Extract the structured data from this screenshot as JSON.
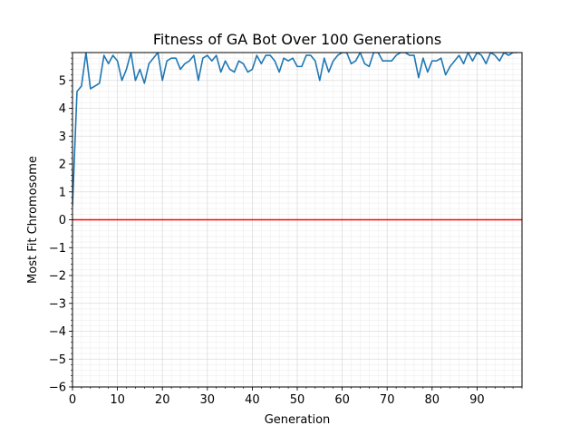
{
  "chart_data": {
    "type": "line",
    "title": "Fitness of GA Bot Over 100 Generations",
    "xlabel": "Generation",
    "ylabel": "Most Fit Chromosome",
    "xlim": [
      0,
      100
    ],
    "ylim": [
      -6,
      6
    ],
    "x_ticks": [
      "0",
      "10",
      "20",
      "30",
      "40",
      "50",
      "60",
      "70",
      "80",
      "90"
    ],
    "y_ticks": [
      "−6",
      "−5",
      "−4",
      "−3",
      "−2",
      "−1",
      "0",
      "1",
      "2",
      "3",
      "4",
      "5"
    ],
    "grid": "major and minor",
    "reference_line": {
      "y": 0,
      "color": "#ff0000"
    },
    "series": [
      {
        "color": "#1f77b4",
        "x": [
          0,
          1,
          2,
          3,
          4,
          5,
          6,
          7,
          8,
          9,
          10,
          11,
          12,
          13,
          14,
          15,
          16,
          17,
          18,
          19,
          20,
          21,
          22,
          23,
          24,
          25,
          26,
          27,
          28,
          29,
          30,
          31,
          32,
          33,
          34,
          35,
          36,
          37,
          38,
          39,
          40,
          41,
          42,
          43,
          44,
          45,
          46,
          47,
          48,
          49,
          50,
          51,
          52,
          53,
          54,
          55,
          56,
          57,
          58,
          59,
          60,
          61,
          62,
          63,
          64,
          65,
          66,
          67,
          68,
          69,
          70,
          71,
          72,
          73,
          74,
          75,
          76,
          77,
          78,
          79,
          80,
          81,
          82,
          83,
          84,
          85,
          86,
          87,
          88,
          89,
          90,
          91,
          92,
          93,
          94,
          95,
          96,
          97,
          98,
          99
        ],
        "values": [
          0.5,
          4.6,
          4.8,
          6.0,
          4.7,
          4.8,
          4.9,
          5.9,
          5.6,
          5.9,
          5.7,
          5.0,
          5.4,
          6.0,
          5.0,
          5.4,
          4.9,
          5.6,
          5.8,
          6.0,
          5.0,
          5.7,
          5.8,
          5.8,
          5.4,
          5.6,
          5.7,
          5.9,
          5.0,
          5.8,
          5.9,
          5.7,
          5.9,
          5.3,
          5.7,
          5.4,
          5.3,
          5.7,
          5.6,
          5.3,
          5.4,
          5.9,
          5.6,
          5.9,
          5.9,
          5.7,
          5.3,
          5.8,
          5.7,
          5.8,
          5.5,
          5.5,
          5.9,
          5.9,
          5.7,
          5.0,
          5.8,
          5.3,
          5.7,
          5.9,
          6.0,
          6.0,
          5.6,
          5.7,
          6.0,
          5.6,
          5.5,
          6.0,
          6.0,
          5.7,
          5.7,
          5.7,
          5.9,
          6.0,
          6.0,
          5.9,
          5.9,
          5.1,
          5.8,
          5.3,
          5.7,
          5.7,
          5.8,
          5.2,
          5.5,
          5.7,
          5.9,
          5.6,
          6.0,
          5.7,
          6.0,
          5.9,
          5.6,
          6.0,
          5.9,
          5.7,
          6.0,
          5.9,
          6.0,
          6.0
        ]
      }
    ]
  }
}
